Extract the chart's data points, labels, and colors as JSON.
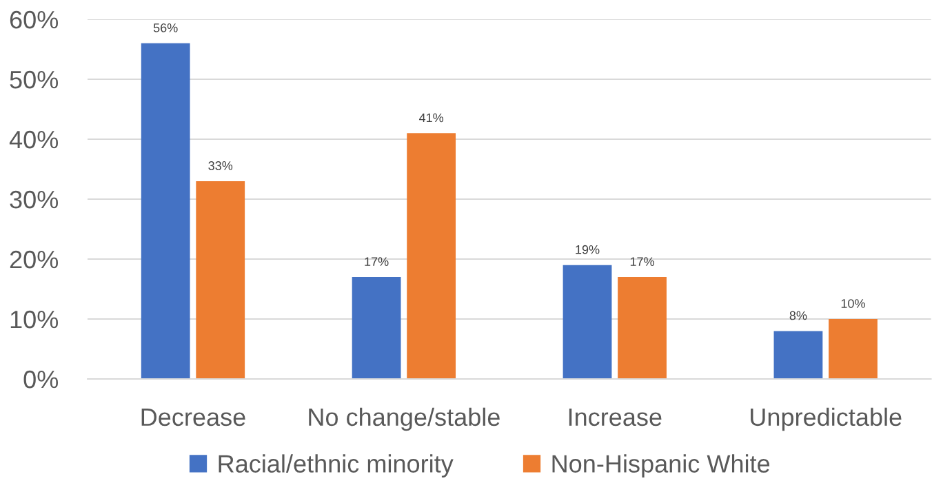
{
  "chart_data": {
    "type": "bar",
    "categories": [
      "Decrease",
      "No change/stable",
      "Increase",
      "Unpredictable"
    ],
    "series": [
      {
        "name": "Racial/ethnic minority",
        "color": "#4472c4",
        "values": [
          56,
          17,
          19,
          8
        ],
        "value_labels": [
          "56%",
          "17%",
          "19%",
          "8%"
        ]
      },
      {
        "name": "Non-Hispanic White",
        "color": "#ed7d31",
        "values": [
          33,
          41,
          17,
          10
        ],
        "value_labels": [
          "33%",
          "41%",
          "17%",
          "10%"
        ]
      }
    ],
    "ylim": [
      0,
      60
    ],
    "yticks": [
      {
        "value": 0,
        "label": "0%"
      },
      {
        "value": 10,
        "label": "10%"
      },
      {
        "value": 20,
        "label": "20%"
      },
      {
        "value": 30,
        "label": "30%"
      },
      {
        "value": 40,
        "label": "40%"
      },
      {
        "value": 50,
        "label": "50%"
      },
      {
        "value": 60,
        "label": "60%"
      }
    ],
    "grid": "y",
    "legend": "bottom"
  }
}
